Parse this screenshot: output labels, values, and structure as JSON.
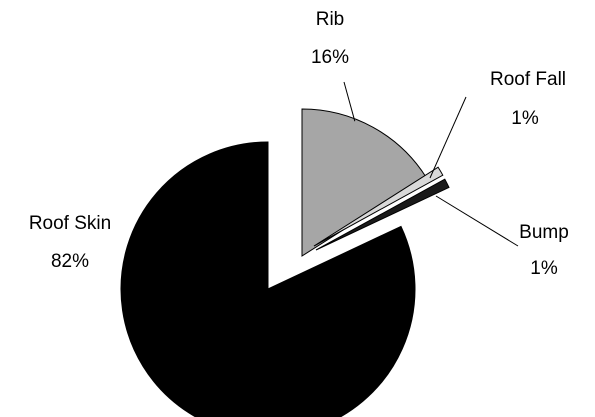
{
  "chart_data": {
    "type": "pie",
    "title": "",
    "categories": [
      "Rib",
      "Roof Fall",
      "Bump",
      "Roof Skin"
    ],
    "values": [
      16,
      1,
      1,
      82
    ],
    "labels": [
      "16%",
      "1%",
      "1%",
      "82%"
    ],
    "colors": [
      "#a6a6a6",
      "#d9d9d9",
      "#1a1a1a",
      "#000000"
    ],
    "exploded": true,
    "legend": "none"
  }
}
